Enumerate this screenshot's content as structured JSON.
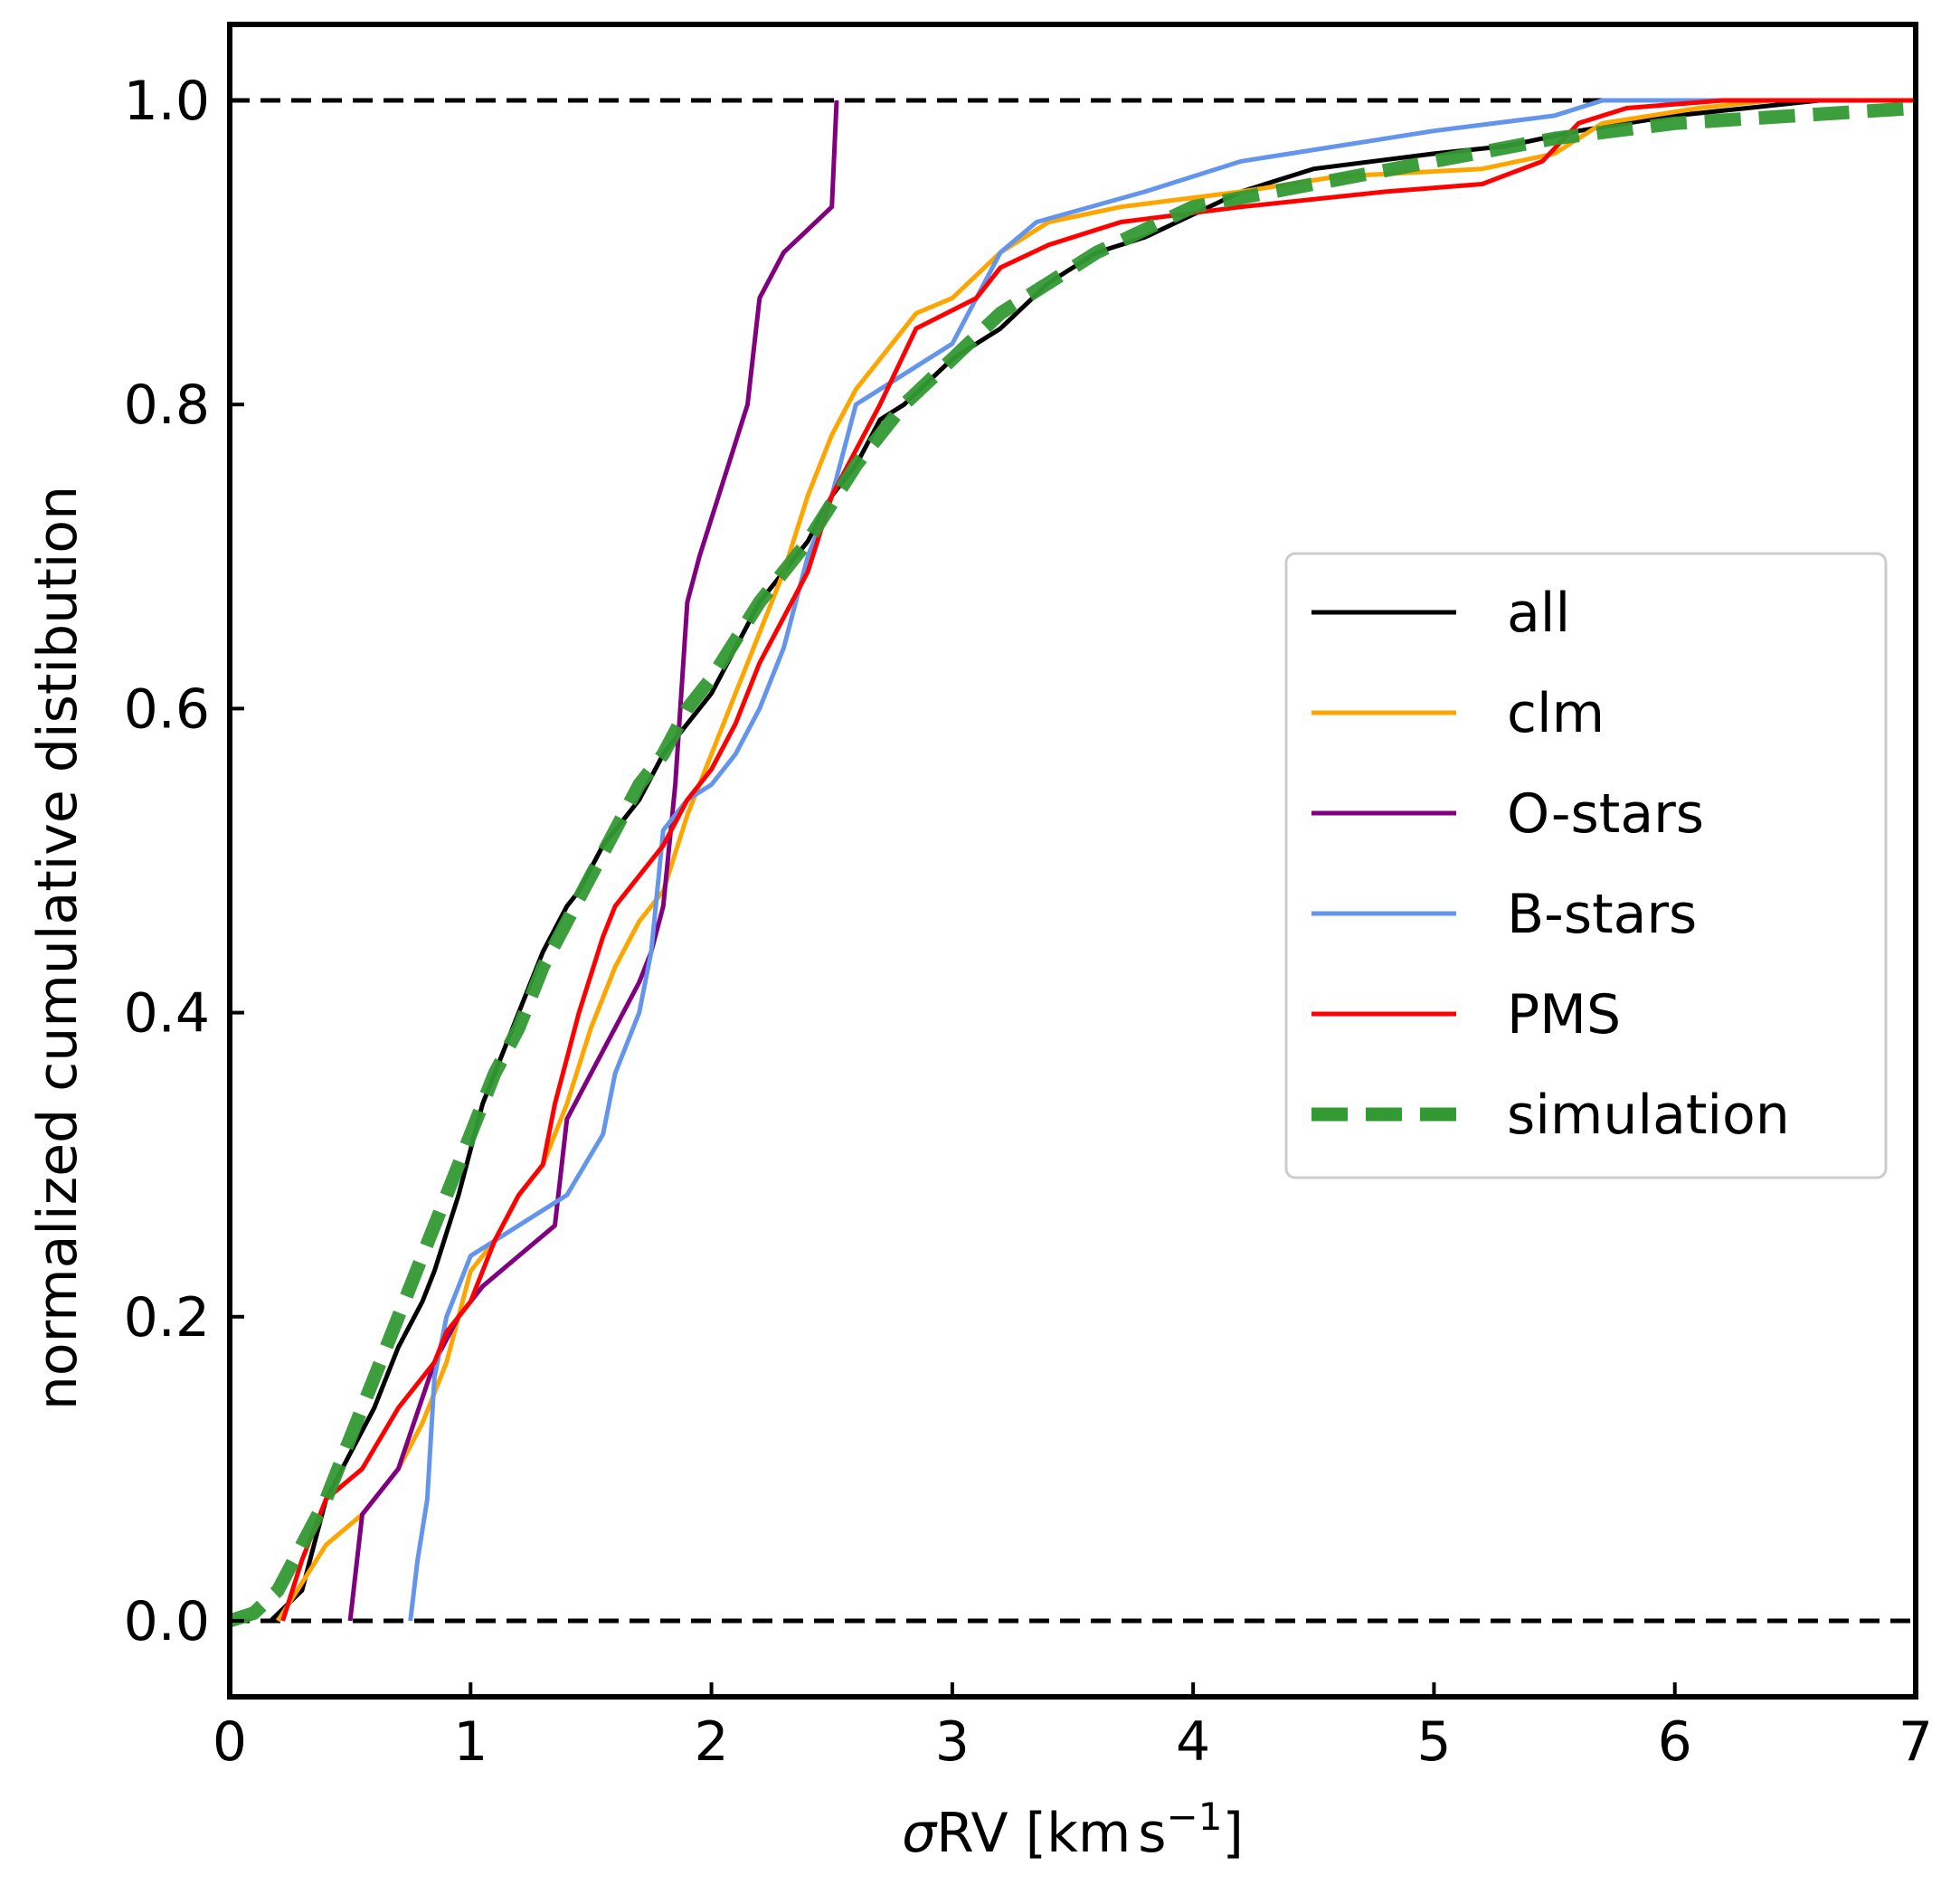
{
  "chart_data": {
    "type": "line",
    "title": "",
    "xlabel": "σRV [km s⁻¹]",
    "xlabel_parts": {
      "sigma": "σ",
      "rv": "RV [km",
      "s": "s",
      "sup": "−1",
      "close": "]"
    },
    "ylabel": "normalized cumulative distibution",
    "xlim": [
      0,
      7
    ],
    "ylim": [
      -0.05,
      1.05
    ],
    "xticks": [
      0,
      1,
      2,
      3,
      4,
      5,
      6,
      7
    ],
    "xtick_labels": [
      "0",
      "1",
      "2",
      "3",
      "4",
      "5",
      "6",
      "7"
    ],
    "yticks": [
      0,
      0.2,
      0.4,
      0.6,
      0.8,
      1.0
    ],
    "ytick_labels": [
      "0.0",
      "0.2",
      "0.4",
      "0.6",
      "0.8",
      "1.0"
    ],
    "grid": false,
    "legend_position": "center-right",
    "reference_lines": [
      {
        "y": 0.0,
        "color": "#000000",
        "style": "dashed"
      },
      {
        "y": 1.0,
        "color": "#000000",
        "style": "dashed"
      }
    ],
    "series": [
      {
        "name": "all",
        "color": "#000000",
        "style": "solid",
        "x": [
          0.17,
          0.3,
          0.35,
          0.4,
          0.5,
          0.6,
          0.7,
          0.8,
          0.85,
          0.95,
          1.05,
          1.1,
          1.2,
          1.3,
          1.4,
          1.45,
          1.55,
          1.6,
          1.7,
          1.8,
          1.9,
          2.0,
          2.1,
          2.2,
          2.3,
          2.4,
          2.5,
          2.6,
          2.7,
          2.8,
          3.0,
          3.2,
          3.4,
          3.6,
          3.8,
          4.0,
          4.2,
          4.5,
          5.0,
          5.3,
          5.6,
          6.0,
          6.3,
          6.6,
          7.0
        ],
        "y": [
          0.0,
          0.02,
          0.05,
          0.08,
          0.11,
          0.14,
          0.18,
          0.21,
          0.23,
          0.28,
          0.34,
          0.36,
          0.4,
          0.44,
          0.47,
          0.48,
          0.51,
          0.52,
          0.54,
          0.57,
          0.59,
          0.61,
          0.64,
          0.67,
          0.69,
          0.71,
          0.74,
          0.76,
          0.79,
          0.8,
          0.83,
          0.85,
          0.88,
          0.9,
          0.91,
          0.925,
          0.94,
          0.955,
          0.965,
          0.97,
          0.98,
          0.99,
          0.995,
          1.0,
          1.0
        ]
      },
      {
        "name": "clm",
        "color": "#ffa500",
        "style": "solid",
        "x": [
          0.2,
          0.4,
          0.55,
          0.7,
          0.8,
          0.9,
          1.0,
          1.1,
          1.2,
          1.3,
          1.4,
          1.5,
          1.6,
          1.7,
          1.8,
          1.9,
          2.0,
          2.1,
          2.2,
          2.3,
          2.4,
          2.5,
          2.6,
          2.7,
          2.85,
          3.0,
          3.2,
          3.4,
          3.7,
          4.2,
          4.6,
          5.2,
          5.5,
          5.7,
          6.1,
          6.4,
          7.0
        ],
        "y": [
          0.0,
          0.05,
          0.07,
          0.1,
          0.13,
          0.17,
          0.23,
          0.25,
          0.28,
          0.3,
          0.34,
          0.39,
          0.43,
          0.46,
          0.48,
          0.53,
          0.57,
          0.61,
          0.65,
          0.69,
          0.74,
          0.78,
          0.81,
          0.83,
          0.86,
          0.87,
          0.9,
          0.92,
          0.93,
          0.94,
          0.95,
          0.955,
          0.965,
          0.985,
          0.995,
          1.0,
          1.0
        ]
      },
      {
        "name": "O-stars",
        "color": "#800080",
        "style": "solid",
        "x": [
          0.5,
          0.55,
          0.7,
          0.85,
          0.95,
          1.05,
          1.2,
          1.35,
          1.4,
          1.5,
          1.6,
          1.7,
          1.75,
          1.8,
          1.85,
          1.9,
          1.95,
          2.05,
          2.15,
          2.2,
          2.3,
          2.5,
          2.52
        ],
        "y": [
          0.0,
          0.07,
          0.1,
          0.17,
          0.2,
          0.22,
          0.24,
          0.26,
          0.33,
          0.36,
          0.39,
          0.42,
          0.44,
          0.47,
          0.55,
          0.67,
          0.7,
          0.75,
          0.8,
          0.87,
          0.9,
          0.93,
          1.0
        ]
      },
      {
        "name": "B-stars",
        "color": "#6495ed",
        "style": "solid",
        "x": [
          0.75,
          0.78,
          0.82,
          0.85,
          0.9,
          0.95,
          1.0,
          1.1,
          1.2,
          1.4,
          1.55,
          1.6,
          1.7,
          1.75,
          1.8,
          1.9,
          2.0,
          2.1,
          2.2,
          2.3,
          2.4,
          2.5,
          2.6,
          2.8,
          3.0,
          3.2,
          3.35,
          3.8,
          4.2,
          4.6,
          5.0,
          5.5,
          5.7,
          6.1,
          7.0
        ],
        "y": [
          0.0,
          0.04,
          0.08,
          0.16,
          0.2,
          0.22,
          0.24,
          0.25,
          0.26,
          0.28,
          0.32,
          0.36,
          0.4,
          0.44,
          0.52,
          0.54,
          0.55,
          0.57,
          0.6,
          0.64,
          0.7,
          0.74,
          0.8,
          0.82,
          0.84,
          0.9,
          0.92,
          0.94,
          0.96,
          0.97,
          0.98,
          0.99,
          1.0,
          1.0,
          1.0
        ]
      },
      {
        "name": "PMS",
        "color": "#ff0000",
        "style": "solid",
        "x": [
          0.22,
          0.3,
          0.4,
          0.55,
          0.7,
          0.85,
          0.9,
          1.0,
          1.1,
          1.2,
          1.3,
          1.35,
          1.45,
          1.55,
          1.6,
          1.7,
          1.8,
          1.9,
          2.0,
          2.1,
          2.2,
          2.3,
          2.4,
          2.5,
          2.6,
          2.7,
          2.85,
          3.1,
          3.2,
          3.4,
          3.7,
          4.2,
          4.8,
          5.2,
          5.45,
          5.6,
          5.8,
          6.2,
          7.0
        ],
        "y": [
          0.0,
          0.04,
          0.08,
          0.1,
          0.14,
          0.17,
          0.19,
          0.21,
          0.25,
          0.28,
          0.3,
          0.34,
          0.4,
          0.45,
          0.47,
          0.49,
          0.51,
          0.54,
          0.56,
          0.59,
          0.63,
          0.66,
          0.69,
          0.74,
          0.77,
          0.8,
          0.85,
          0.87,
          0.89,
          0.905,
          0.92,
          0.93,
          0.94,
          0.945,
          0.96,
          0.985,
          0.995,
          1.0,
          1.0
        ]
      },
      {
        "name": "simulation",
        "color": "#339933",
        "style": "dashed",
        "x": [
          0.0,
          0.1,
          0.2,
          0.3,
          0.4,
          0.5,
          0.6,
          0.7,
          0.8,
          0.9,
          1.0,
          1.1,
          1.2,
          1.3,
          1.4,
          1.5,
          1.6,
          1.7,
          1.8,
          1.9,
          2.0,
          2.2,
          2.4,
          2.6,
          2.8,
          3.0,
          3.2,
          3.4,
          3.6,
          3.8,
          4.0,
          4.5,
          5.0,
          5.5,
          6.0,
          6.5,
          7.0
        ],
        "y": [
          0.0,
          0.005,
          0.02,
          0.05,
          0.08,
          0.12,
          0.16,
          0.2,
          0.24,
          0.28,
          0.32,
          0.36,
          0.39,
          0.43,
          0.46,
          0.49,
          0.52,
          0.55,
          0.57,
          0.6,
          0.62,
          0.67,
          0.71,
          0.76,
          0.8,
          0.83,
          0.86,
          0.88,
          0.9,
          0.915,
          0.93,
          0.945,
          0.96,
          0.975,
          0.985,
          0.99,
          0.995
        ]
      }
    ]
  }
}
